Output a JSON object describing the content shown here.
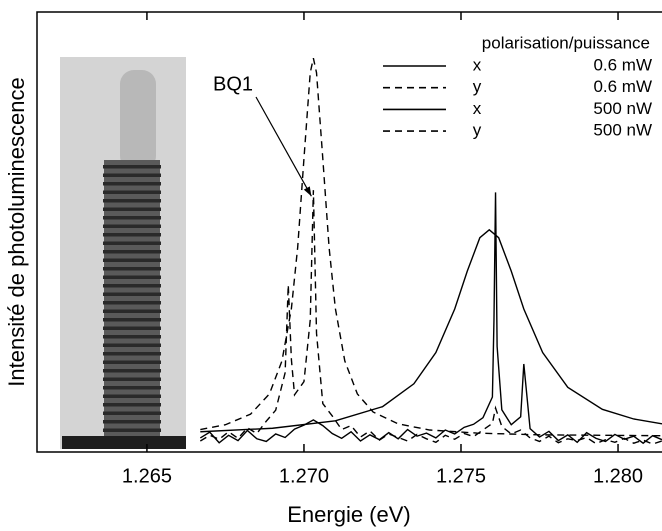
{
  "chart_data": {
    "type": "line",
    "x_label": "Energie (eV)",
    "y_label": "Intensité de photoluminescence",
    "legend_title": "polarisation/puissance",
    "annotation": "BQ1",
    "xlim": [
      1.2615,
      1.2814
    ],
    "ylim": [
      0,
      100
    ],
    "xticks": [
      1.265,
      {
        "value": 1.27,
        "label": "1.270"
      },
      1.275,
      {
        "value": 1.28,
        "label": "1.280"
      }
    ],
    "series": [
      {
        "polarisation": "x",
        "puissance": "0.6 mW",
        "dashed": false,
        "color": "#000000",
        "x": [
          1.2667,
          1.269,
          1.271,
          1.2725,
          1.2735,
          1.2742,
          1.2748,
          1.2752,
          1.2756,
          1.2759,
          1.2762,
          1.2766,
          1.277,
          1.2776,
          1.2784,
          1.2795,
          1.2805,
          1.2814
        ],
        "values": [
          4.6,
          5.4,
          7.1,
          10.3,
          15.5,
          22.6,
          32.5,
          41.1,
          48.7,
          50.5,
          48.7,
          41.1,
          32.5,
          22.6,
          14.7,
          9.7,
          7.5,
          6.4
        ]
      },
      {
        "polarisation": "y",
        "puissance": "0.6 mW",
        "dashed": true,
        "color": "#000000",
        "x": [
          1.2667,
          1.2675,
          1.2683,
          1.2689,
          1.2693,
          1.2696,
          1.2698,
          1.27,
          1.2702,
          1.2703,
          1.2704,
          1.2706,
          1.2708,
          1.271,
          1.2713,
          1.2717,
          1.2722,
          1.273,
          1.274,
          1.2755,
          1.2775,
          1.2795,
          1.2814
        ],
        "values": [
          5.1,
          6.2,
          8.6,
          13.2,
          20.7,
          32.6,
          46.5,
          66.7,
          86.2,
          89.5,
          86.2,
          66.7,
          46.5,
          32.6,
          20.7,
          13.2,
          9.1,
          6.4,
          5.0,
          4.3,
          3.9,
          3.8,
          3.7
        ]
      },
      {
        "polarisation": "x",
        "puissance": "500 nW",
        "dashed": false,
        "color": "#000000",
        "x": [
          1.2667,
          1.267,
          1.2673,
          1.2676,
          1.2679,
          1.2682,
          1.2685,
          1.2688,
          1.2691,
          1.2694,
          1.2697,
          1.27,
          1.2703,
          1.2706,
          1.2709,
          1.2712,
          1.2715,
          1.2718,
          1.2721,
          1.2724,
          1.2727,
          1.273,
          1.2733,
          1.2736,
          1.2739,
          1.2742,
          1.2745,
          1.2748,
          1.2751,
          1.2754,
          1.2757,
          1.276,
          1.27605,
          1.2761,
          1.27615,
          1.2763,
          1.2766,
          1.2769,
          1.277,
          1.2772,
          1.2775,
          1.2778,
          1.2781,
          1.2784,
          1.2787,
          1.279,
          1.2793,
          1.2796,
          1.2799,
          1.2802,
          1.2805,
          1.2808,
          1.2811,
          1.2814
        ],
        "values": [
          3.2,
          4.5,
          2.1,
          3.8,
          2.6,
          4.9,
          3.0,
          2.4,
          4.1,
          3.3,
          5.2,
          6.1,
          7.3,
          6.0,
          4.2,
          3.1,
          4.6,
          2.5,
          3.9,
          2.8,
          4.4,
          3.0,
          5.1,
          3.6,
          4.3,
          3.2,
          5.0,
          4.1,
          5.6,
          6.3,
          7.8,
          12.5,
          30.0,
          59.0,
          24.0,
          9.6,
          6.2,
          8.0,
          20.0,
          5.3,
          3.4,
          4.7,
          2.6,
          3.9,
          2.2,
          4.4,
          3.1,
          2.4,
          4.0,
          2.9,
          3.6,
          2.0,
          3.7,
          2.8
        ]
      },
      {
        "polarisation": "y",
        "puissance": "500 nW",
        "dashed": true,
        "color": "#000000",
        "x": [
          1.2667,
          1.267,
          1.2673,
          1.2676,
          1.2679,
          1.2682,
          1.2685,
          1.2688,
          1.2691,
          1.2694,
          1.2695,
          1.2696,
          1.2697,
          1.27,
          1.2702,
          1.2703,
          1.2704,
          1.2706,
          1.2709,
          1.2712,
          1.2715,
          1.2718,
          1.2721,
          1.2724,
          1.2727,
          1.273,
          1.2733,
          1.2736,
          1.2739,
          1.2742,
          1.2745,
          1.2748,
          1.2751,
          1.2754,
          1.2757,
          1.276,
          1.2761,
          1.2763,
          1.2766,
          1.2769,
          1.2772,
          1.2775,
          1.2778,
          1.2781,
          1.2784,
          1.2787,
          1.279,
          1.2793,
          1.2796,
          1.2799,
          1.2802,
          1.2805,
          1.2808,
          1.2811,
          1.2814
        ],
        "values": [
          2.5,
          3.8,
          2.9,
          4.6,
          3.1,
          5.5,
          4.2,
          7.0,
          9.5,
          18.0,
          38.0,
          21.0,
          13.0,
          16.0,
          30.0,
          59.5,
          27.0,
          11.0,
          8.2,
          5.1,
          6.0,
          3.4,
          4.8,
          2.7,
          4.1,
          3.3,
          2.5,
          4.0,
          3.0,
          2.2,
          3.8,
          2.9,
          4.2,
          3.5,
          5.0,
          6.5,
          10.0,
          5.8,
          4.1,
          5.0,
          3.2,
          2.4,
          3.6,
          2.1,
          3.0,
          2.6,
          3.3,
          1.9,
          2.8,
          2.2,
          3.1,
          2.0,
          2.7,
          1.8,
          2.5
        ]
      }
    ]
  }
}
